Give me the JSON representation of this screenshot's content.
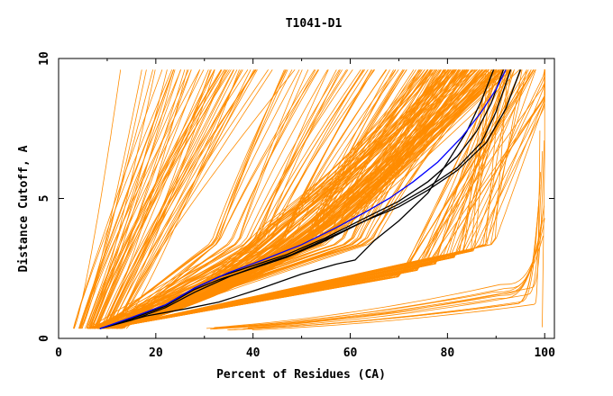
{
  "chart_data": {
    "type": "line",
    "title": "T1041-D1",
    "xlabel": "Percent of Residues (CA)",
    "ylabel": "Distance Cutoff, A",
    "xlim": [
      0,
      102
    ],
    "ylim": [
      0,
      10
    ],
    "x_ticks": [
      0,
      20,
      40,
      60,
      80,
      100
    ],
    "y_ticks": [
      0,
      5,
      10
    ],
    "grid": false,
    "legend": "none",
    "colors": {
      "bundle": "#ff8c00",
      "highlight_black": "#000000",
      "highlight_blue": "#0000ff"
    },
    "series": [
      {
        "color": "#000000",
        "x": [
          8.5,
          15,
          22,
          28,
          33,
          40,
          47,
          55,
          63,
          70,
          76,
          82,
          86,
          89,
          91.5
        ],
        "y": [
          0.35,
          0.7,
          1.2,
          1.8,
          2.2,
          2.6,
          3.0,
          3.6,
          4.3,
          4.9,
          5.6,
          6.5,
          7.4,
          8.4,
          9.6
        ]
      },
      {
        "color": "#000000",
        "x": [
          8.5,
          15,
          22,
          28,
          33,
          40,
          47,
          55,
          63,
          70,
          76,
          82,
          87,
          90,
          93
        ],
        "y": [
          0.35,
          0.7,
          1.15,
          1.75,
          2.1,
          2.5,
          2.9,
          3.5,
          4.2,
          4.8,
          5.4,
          6.1,
          7.0,
          8.1,
          9.6
        ]
      },
      {
        "color": "#000000",
        "x": [
          8.5,
          15,
          22,
          28,
          35,
          42,
          48,
          55,
          63,
          70,
          76,
          82,
          88,
          92,
          95
        ],
        "y": [
          0.35,
          0.65,
          1.1,
          1.65,
          2.2,
          2.65,
          3.0,
          3.55,
          4.2,
          4.7,
          5.3,
          6.0,
          7.0,
          8.2,
          9.6
        ]
      },
      {
        "color": "#000000",
        "x": [
          8.5,
          18,
          26,
          33,
          41,
          50,
          57,
          61,
          65,
          70,
          76,
          80,
          84,
          87,
          89.5
        ],
        "y": [
          0.35,
          0.8,
          1.05,
          1.3,
          1.75,
          2.3,
          2.65,
          2.8,
          3.5,
          4.2,
          5.2,
          6.3,
          7.4,
          8.5,
          9.6
        ]
      },
      {
        "color": "#0000ff",
        "x": [
          8.5,
          15,
          22,
          28,
          35,
          42,
          50,
          57,
          63,
          68,
          73,
          78,
          83,
          87,
          90,
          92
        ],
        "y": [
          0.35,
          0.75,
          1.2,
          1.8,
          2.35,
          2.8,
          3.35,
          3.95,
          4.5,
          5.0,
          5.6,
          6.3,
          7.2,
          8.1,
          8.9,
          9.6
        ]
      }
    ]
  }
}
